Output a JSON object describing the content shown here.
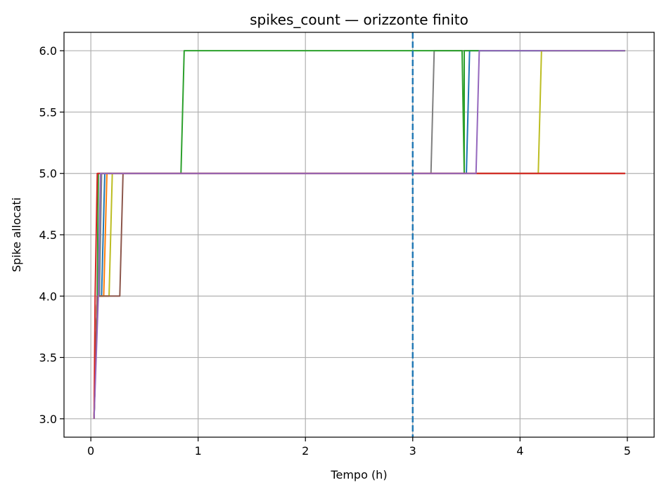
{
  "chart_data": {
    "type": "line",
    "title": "spikes_count — orizzonte finito",
    "xlabel": "Tempo (h)",
    "ylabel": "Spike allocati",
    "xlim": [
      -0.25,
      5.25
    ],
    "ylim": [
      2.85,
      6.15
    ],
    "xticks": [
      0,
      1,
      2,
      3,
      4,
      5
    ],
    "xtick_labels": [
      "0",
      "1",
      "2",
      "3",
      "4",
      "5"
    ],
    "yticks": [
      3.0,
      3.5,
      4.0,
      4.5,
      5.0,
      5.5,
      6.0
    ],
    "ytick_labels": [
      "3.0",
      "3.5",
      "4.0",
      "4.5",
      "5.0",
      "5.5",
      "6.0"
    ],
    "grid": true,
    "vline": {
      "x": 3.0,
      "color": "#1f77b4",
      "style": "dashed"
    },
    "series": [
      {
        "color": "#7f7f7f",
        "points": [
          [
            0.03,
            3.0
          ],
          [
            0.06,
            4.0
          ],
          [
            0.08,
            4.0
          ],
          [
            0.1,
            5.0
          ],
          [
            3.17,
            5.0
          ],
          [
            3.2,
            6.0
          ],
          [
            4.98,
            6.0
          ]
        ]
      },
      {
        "color": "#1f77b4",
        "points": [
          [
            0.03,
            3.0
          ],
          [
            0.06,
            4.0
          ],
          [
            0.1,
            4.0
          ],
          [
            0.13,
            5.0
          ],
          [
            3.5,
            5.0
          ],
          [
            3.53,
            6.0
          ],
          [
            4.98,
            6.0
          ]
        ]
      },
      {
        "color": "#ff7f0e",
        "points": [
          [
            0.03,
            3.0
          ],
          [
            0.06,
            4.0
          ],
          [
            0.12,
            4.0
          ],
          [
            0.15,
            5.0
          ],
          [
            4.98,
            5.0
          ]
        ]
      },
      {
        "color": "#2ca02c",
        "points": [
          [
            0.03,
            3.0
          ],
          [
            0.06,
            4.0
          ],
          [
            0.07,
            5.0
          ],
          [
            0.84,
            5.0
          ],
          [
            0.87,
            6.0
          ],
          [
            3.46,
            6.0
          ],
          [
            3.48,
            5.0
          ],
          [
            3.48,
            6.0
          ],
          [
            4.98,
            6.0
          ]
        ]
      },
      {
        "color": "#bcbd22",
        "points": [
          [
            0.03,
            3.0
          ],
          [
            0.06,
            4.0
          ],
          [
            0.17,
            4.0
          ],
          [
            0.2,
            5.0
          ],
          [
            4.17,
            5.0
          ],
          [
            4.2,
            6.0
          ],
          [
            4.98,
            6.0
          ]
        ]
      },
      {
        "color": "#8c564b",
        "points": [
          [
            0.03,
            3.0
          ],
          [
            0.06,
            4.0
          ],
          [
            0.27,
            4.0
          ],
          [
            0.3,
            5.0
          ],
          [
            4.98,
            5.0
          ]
        ]
      },
      {
        "color": "#d62728",
        "points": [
          [
            0.03,
            3.0
          ],
          [
            0.04,
            4.0
          ],
          [
            0.06,
            5.0
          ],
          [
            4.98,
            5.0
          ]
        ]
      },
      {
        "color": "#9467bd",
        "points": [
          [
            0.03,
            3.0
          ],
          [
            0.07,
            4.0
          ],
          [
            0.09,
            5.0
          ],
          [
            3.59,
            5.0
          ],
          [
            3.62,
            6.0
          ],
          [
            4.98,
            6.0
          ]
        ]
      }
    ]
  }
}
